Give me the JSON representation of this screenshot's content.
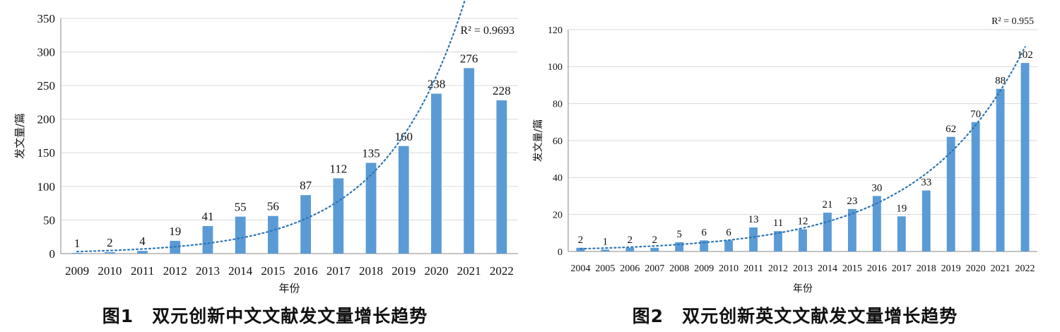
{
  "chart_data": [
    {
      "type": "bar",
      "caption": "图1　双元创新中文文献发文量增长趋势",
      "xlabel": "年份",
      "ylabel": "发文量/篇",
      "ylim": [
        0,
        350
      ],
      "yticks": [
        0,
        50,
        100,
        150,
        200,
        250,
        300,
        350
      ],
      "categories": [
        "2009",
        "2010",
        "2011",
        "2012",
        "2013",
        "2014",
        "2015",
        "2016",
        "2017",
        "2018",
        "2019",
        "2020",
        "2021",
        "2022"
      ],
      "values": [
        1,
        2,
        4,
        19,
        41,
        55,
        56,
        87,
        112,
        135,
        160,
        238,
        276,
        228
      ],
      "trendline": {
        "type": "exponential",
        "label": "R² = 0.9693"
      },
      "bar_color": "#5b9bd5",
      "trend_color": "#2e75b6",
      "grid": true
    },
    {
      "type": "bar",
      "caption": "图2　双元创新英文文献发文量增长趋势",
      "xlabel": "年份",
      "ylabel": "发文量/篇",
      "ylim": [
        0,
        120
      ],
      "yticks": [
        0,
        20,
        40,
        60,
        80,
        100,
        120
      ],
      "categories": [
        "2004",
        "2005",
        "2006",
        "2007",
        "2008",
        "2009",
        "2010",
        "2011",
        "2012",
        "2013",
        "2014",
        "2015",
        "2016",
        "2017",
        "2018",
        "2019",
        "2020",
        "2021",
        "2022"
      ],
      "values": [
        2,
        1,
        2,
        2,
        5,
        6,
        6,
        13,
        11,
        12,
        21,
        23,
        30,
        19,
        33,
        62,
        70,
        88,
        102
      ],
      "trendline": {
        "type": "exponential",
        "label": "R² = 0.955"
      },
      "bar_color": "#5b9bd5",
      "trend_color": "#2e75b6",
      "grid": true
    }
  ]
}
